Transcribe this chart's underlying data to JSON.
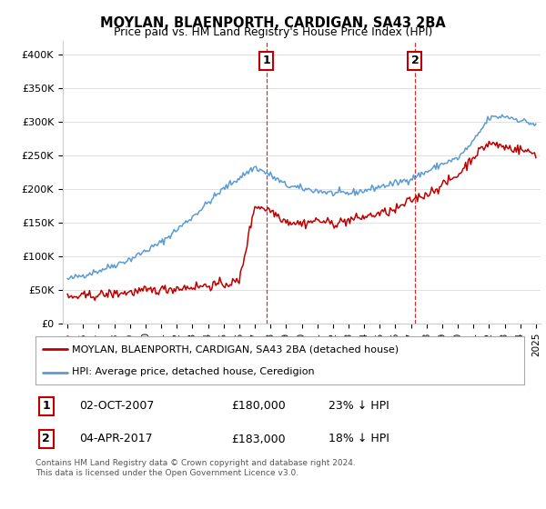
{
  "title": "MOYLAN, BLAENPORTH, CARDIGAN, SA43 2BA",
  "subtitle": "Price paid vs. HM Land Registry's House Price Index (HPI)",
  "ylim": [
    0,
    420000
  ],
  "yticks": [
    0,
    50000,
    100000,
    150000,
    200000,
    250000,
    300000,
    350000,
    400000
  ],
  "ytick_labels": [
    "£0",
    "£50K",
    "£100K",
    "£150K",
    "£200K",
    "£250K",
    "£300K",
    "£350K",
    "£400K"
  ],
  "xmin_year": 1995,
  "xmax_year": 2025,
  "xtick_years": [
    1995,
    1996,
    1997,
    1998,
    1999,
    2000,
    2001,
    2002,
    2003,
    2004,
    2005,
    2006,
    2007,
    2008,
    2009,
    2010,
    2011,
    2012,
    2013,
    2014,
    2015,
    2016,
    2017,
    2018,
    2019,
    2020,
    2021,
    2022,
    2023,
    2024,
    2025
  ],
  "hpi_color": "#5b9bd5",
  "price_color": "#c00000",
  "marker1_year": 2007.75,
  "marker2_year": 2017.25,
  "marker1_label": "1",
  "marker2_label": "2",
  "legend_price_label": "MOYLAN, BLAENPORTH, CARDIGAN, SA43 2BA (detached house)",
  "legend_hpi_label": "HPI: Average price, detached house, Ceredigion",
  "table_row1": [
    "1",
    "02-OCT-2007",
    "£180,000",
    "23% ↓ HPI"
  ],
  "table_row2": [
    "2",
    "04-APR-2017",
    "£183,000",
    "18% ↓ HPI"
  ],
  "footer": "Contains HM Land Registry data © Crown copyright and database right 2024.\nThis data is licensed under the Open Government Licence v3.0.",
  "background_color": "#ffffff",
  "grid_color": "#e0e0e0",
  "hpi_xp": [
    1995,
    1997,
    1999,
    2001,
    2003,
    2005,
    2007,
    2008,
    2009,
    2010,
    2011,
    2012,
    2013,
    2014,
    2015,
    2016,
    2017,
    2018,
    2019,
    2020,
    2021,
    2022,
    2023,
    2024,
    2025
  ],
  "hpi_fp": [
    65000,
    78000,
    95000,
    120000,
    158000,
    200000,
    232000,
    220000,
    205000,
    200000,
    197000,
    193000,
    193000,
    197000,
    203000,
    208000,
    215000,
    225000,
    237000,
    245000,
    270000,
    305000,
    308000,
    302000,
    295000
  ],
  "price_xp": [
    1995,
    1997,
    1999,
    2001,
    2003,
    2005,
    2006,
    2007,
    2008,
    2009,
    2010,
    2011,
    2012,
    2013,
    2014,
    2015,
    2016,
    2017,
    2018,
    2019,
    2020,
    2021,
    2022,
    2023,
    2024,
    2025
  ],
  "price_fp": [
    38000,
    42000,
    46000,
    50000,
    54000,
    58000,
    62000,
    175000,
    168000,
    152000,
    148000,
    153000,
    148000,
    153000,
    158000,
    163000,
    168000,
    183000,
    192000,
    205000,
    220000,
    248000,
    268000,
    262000,
    258000,
    252000
  ]
}
